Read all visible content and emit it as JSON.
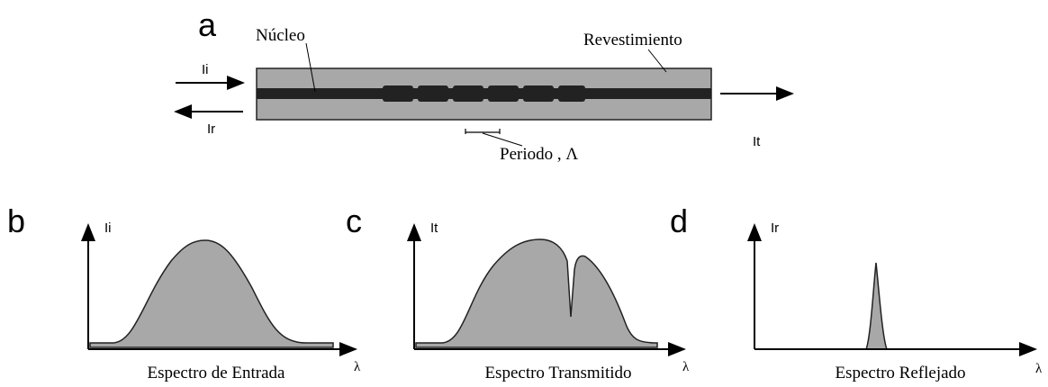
{
  "fiber": {
    "panel_letter": "a",
    "core_label": "Núcleo",
    "cladding_label": "Revestimiento",
    "input_label": "Ii",
    "reflected_label": "Ir",
    "transmitted_label": "It",
    "period_label": "Periodo , Λ"
  },
  "panels": [
    {
      "letter": "b",
      "y_label": "Ii",
      "x_label": "λ",
      "caption": "Espectro de Entrada"
    },
    {
      "letter": "c",
      "y_label": "It",
      "x_label": "λ",
      "caption": "Espectro Transmitido"
    },
    {
      "letter": "d",
      "y_label": "Ir",
      "x_label": "λ",
      "caption": "Espectro Reflejado"
    }
  ]
}
